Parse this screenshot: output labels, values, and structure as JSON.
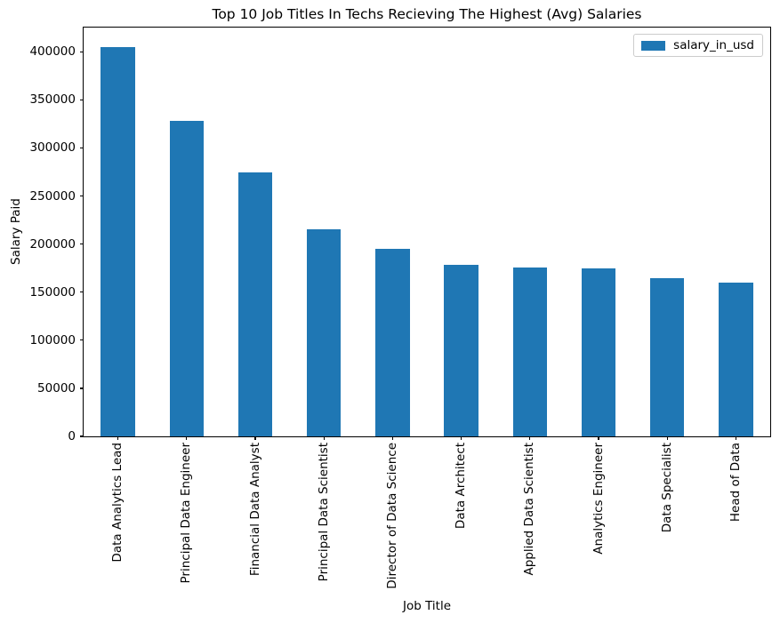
{
  "chart_data": {
    "type": "bar",
    "title": "Top 10 Job Titles In Techs Recieving The Highest (Avg) Salaries",
    "xlabel": "Job Title",
    "ylabel": "Salary Paid",
    "categories": [
      "Data Analytics Lead",
      "Principal Data Engineer",
      "Financial Data Analyst",
      "Principal Data Scientist",
      "Director of Data Science",
      "Data Architect",
      "Applied Data Scientist",
      "Analytics Engineer",
      "Data Specialist",
      "Head of Data"
    ],
    "series": [
      {
        "name": "salary_in_usd",
        "values": [
          405000,
          328000,
          275000,
          215000,
          195000,
          178000,
          176000,
          175000,
          165000,
          160000
        ]
      }
    ],
    "yticks": [
      0,
      50000,
      100000,
      150000,
      200000,
      250000,
      300000,
      350000,
      400000
    ],
    "ylim": [
      0,
      425250
    ],
    "x_tick_rotation": 90,
    "grid": false,
    "bar_color": "#1f77b4",
    "legend": {
      "position": "upper right",
      "entries": [
        {
          "label": "salary_in_usd",
          "color": "#1f77b4"
        }
      ]
    }
  }
}
